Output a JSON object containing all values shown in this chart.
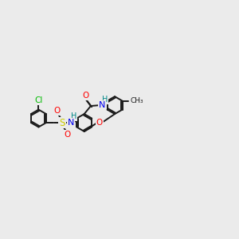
{
  "bg_color": "#ebebeb",
  "bond_color": "#1a1a1a",
  "cl_color": "#00bb00",
  "o_color": "#ff0000",
  "n_color": "#0000ee",
  "s_color": "#cccc00",
  "h_color": "#008888",
  "lw": 1.4,
  "dbo": 0.055,
  "xlim": [
    0,
    10
  ],
  "ylim": [
    0,
    10
  ]
}
